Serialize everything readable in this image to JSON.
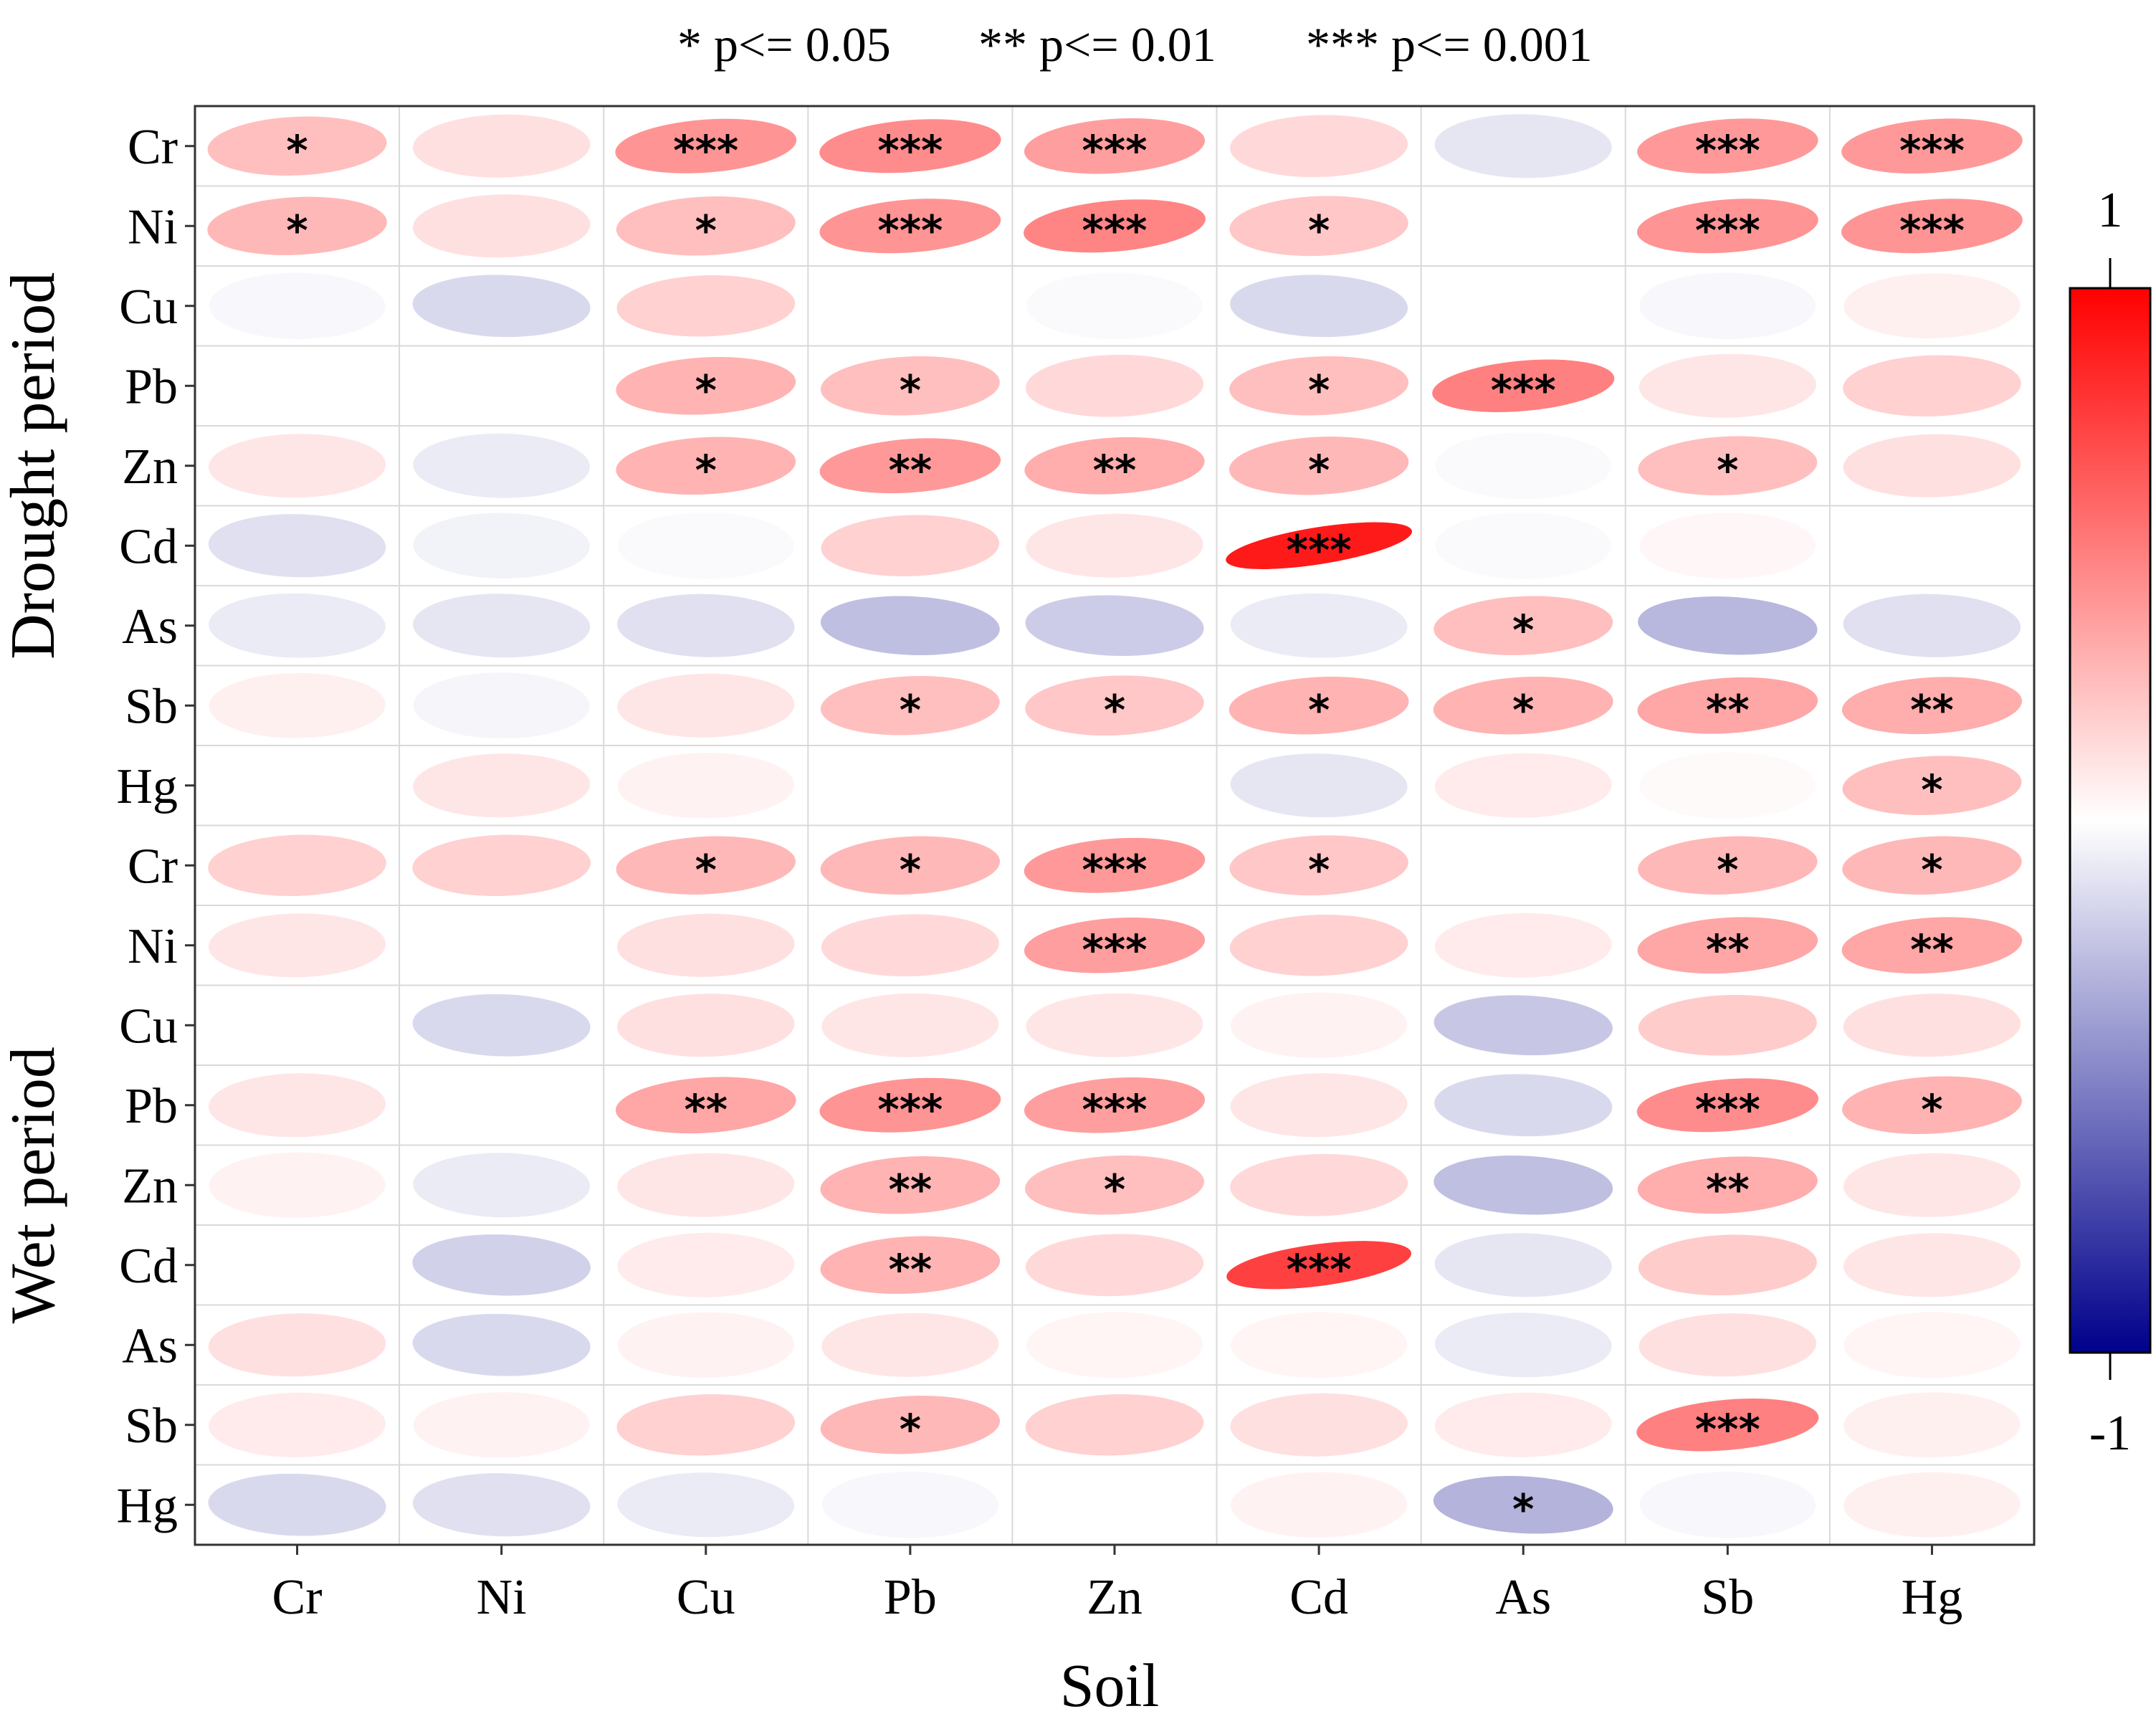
{
  "significance_legend": [
    "* p<= 0.05",
    "** p<= 0.01",
    "*** p<= 0.001"
  ],
  "colorbar": {
    "max_label": "1",
    "min_label": "-1",
    "high_color": "#ff0000",
    "mid_color": "#ffffff",
    "low_color": "#00008b"
  },
  "chart_data": {
    "type": "heatmap",
    "glyph": "ellipse",
    "title": "",
    "xlabel": "Soil",
    "ylabel": "",
    "value_range": [
      -1,
      1
    ],
    "x_categories": [
      "Cr",
      "Ni",
      "Cu",
      "Pb",
      "Zn",
      "Cd",
      "As",
      "Sb",
      "Hg"
    ],
    "groups": [
      {
        "name": "Drought period",
        "rows": [
          {
            "label": "Cr",
            "values": [
              0.25,
              0.12,
              0.42,
              0.45,
              0.38,
              0.15,
              -0.1,
              0.4,
              0.4
            ],
            "stars": [
              "*",
              "",
              "***",
              "***",
              "***",
              "",
              "",
              "***",
              "***"
            ]
          },
          {
            "label": "Ni",
            "values": [
              0.28,
              0.12,
              0.25,
              0.42,
              0.48,
              0.22,
              0.0,
              0.42,
              0.42
            ],
            "stars": [
              "*",
              "",
              "*",
              "***",
              "***",
              "*",
              "",
              "***",
              "***"
            ]
          },
          {
            "label": "Cu",
            "values": [
              -0.03,
              -0.15,
              0.18,
              0.0,
              -0.02,
              -0.15,
              0.0,
              -0.03,
              0.06
            ],
            "stars": [
              "",
              "",
              "",
              "",
              "",
              "",
              "",
              "",
              ""
            ]
          },
          {
            "label": "Pb",
            "values": [
              0.0,
              0.0,
              0.3,
              0.25,
              0.15,
              0.25,
              0.5,
              0.1,
              0.18
            ],
            "stars": [
              "",
              "",
              "*",
              "*",
              "",
              "*",
              "***",
              "",
              ""
            ]
          },
          {
            "label": "Zn",
            "values": [
              0.1,
              -0.08,
              0.3,
              0.4,
              0.32,
              0.28,
              -0.02,
              0.25,
              0.12
            ],
            "stars": [
              "",
              "",
              "*",
              "**",
              "**",
              "*",
              "",
              "*",
              ""
            ]
          },
          {
            "label": "Cd",
            "values": [
              -0.12,
              -0.05,
              -0.02,
              0.18,
              0.1,
              0.9,
              -0.02,
              0.03,
              0.0
            ],
            "stars": [
              "",
              "",
              "",
              "",
              "",
              "***",
              "",
              "",
              ""
            ]
          },
          {
            "label": "As",
            "values": [
              -0.08,
              -0.1,
              -0.12,
              -0.25,
              -0.2,
              -0.08,
              0.25,
              -0.28,
              -0.12
            ],
            "stars": [
              "",
              "",
              "",
              "",
              "",
              "",
              "*",
              "",
              ""
            ]
          },
          {
            "label": "Sb",
            "values": [
              0.06,
              -0.04,
              0.1,
              0.25,
              0.22,
              0.3,
              0.3,
              0.35,
              0.32
            ],
            "stars": [
              "",
              "",
              "",
              "*",
              "*",
              "*",
              "*",
              "**",
              "**"
            ]
          },
          {
            "label": "Hg",
            "values": [
              0.0,
              0.1,
              0.05,
              0.0,
              0.0,
              -0.1,
              0.08,
              0.02,
              0.25
            ],
            "stars": [
              "",
              "",
              "",
              "",
              "",
              "",
              "",
              "",
              "*"
            ]
          }
        ]
      },
      {
        "name": "Wet period",
        "rows": [
          {
            "label": "Cr",
            "values": [
              0.18,
              0.18,
              0.28,
              0.28,
              0.4,
              0.22,
              0.0,
              0.28,
              0.28
            ],
            "stars": [
              "",
              "",
              "*",
              "*",
              "***",
              "*",
              "",
              "*",
              "*"
            ]
          },
          {
            "label": "Ni",
            "values": [
              0.1,
              0.0,
              0.12,
              0.15,
              0.38,
              0.18,
              0.08,
              0.35,
              0.35
            ],
            "stars": [
              "",
              "",
              "",
              "",
              "***",
              "",
              "",
              "**",
              "**"
            ]
          },
          {
            "label": "Cu",
            "values": [
              0.0,
              -0.15,
              0.12,
              0.1,
              0.1,
              0.05,
              -0.22,
              0.2,
              0.12
            ],
            "stars": [
              "",
              "",
              "",
              "",
              "",
              "",
              "",
              "",
              ""
            ]
          },
          {
            "label": "Pb",
            "values": [
              0.1,
              0.0,
              0.35,
              0.42,
              0.38,
              0.1,
              -0.15,
              0.45,
              0.3
            ],
            "stars": [
              "",
              "",
              "**",
              "***",
              "***",
              "",
              "",
              "***",
              "*"
            ]
          },
          {
            "label": "Zn",
            "values": [
              0.05,
              -0.08,
              0.1,
              0.3,
              0.25,
              0.15,
              -0.25,
              0.32,
              0.1
            ],
            "stars": [
              "",
              "",
              "",
              "**",
              "*",
              "",
              "",
              "**",
              ""
            ]
          },
          {
            "label": "Cd",
            "values": [
              0.0,
              -0.18,
              0.08,
              0.3,
              0.15,
              0.75,
              -0.1,
              0.2,
              0.1
            ],
            "stars": [
              "",
              "",
              "",
              "**",
              "",
              "***",
              "",
              "",
              ""
            ]
          },
          {
            "label": "As",
            "values": [
              0.12,
              -0.15,
              0.05,
              0.1,
              0.04,
              0.04,
              -0.08,
              0.12,
              0.04
            ],
            "stars": [
              "",
              "",
              "",
              "",
              "",
              "",
              "",
              "",
              ""
            ]
          },
          {
            "label": "Sb",
            "values": [
              0.08,
              0.05,
              0.18,
              0.28,
              0.18,
              0.12,
              0.08,
              0.5,
              0.06
            ],
            "stars": [
              "",
              "",
              "",
              "*",
              "",
              "",
              "",
              "***",
              ""
            ]
          },
          {
            "label": "Hg",
            "values": [
              -0.15,
              -0.12,
              -0.08,
              -0.03,
              0.0,
              0.05,
              -0.3,
              -0.03,
              0.06
            ],
            "stars": [
              "",
              "",
              "",
              "",
              "",
              "",
              "*",
              "",
              ""
            ]
          }
        ]
      }
    ]
  }
}
